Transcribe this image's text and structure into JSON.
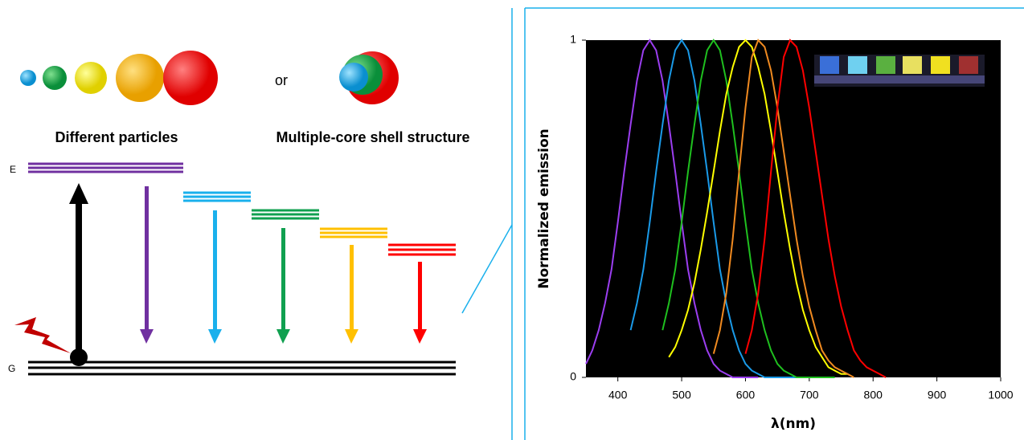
{
  "diagram": {
    "connector": "or",
    "labels": [
      "Different particles",
      "Multiple-core shell structure"
    ],
    "levels": {
      "excited": "E",
      "ground": "G"
    }
  },
  "chart_data": {
    "type": "line",
    "xlabel": "λ(nm)",
    "ylabel": "Normalized emission",
    "xlim": [
      350,
      1000
    ],
    "xticks": [
      400,
      500,
      600,
      700,
      800,
      900,
      1000
    ],
    "ylim": [
      0,
      1
    ],
    "yticks": [
      0,
      1
    ],
    "background": "#000000",
    "x": [
      350,
      360,
      370,
      380,
      390,
      400,
      410,
      420,
      430,
      440,
      450,
      460,
      470,
      480,
      490,
      500,
      510,
      520,
      530,
      540,
      550,
      560,
      570,
      580,
      590,
      600,
      610,
      620,
      630,
      640,
      650,
      660,
      670,
      680,
      690,
      700,
      710,
      720,
      730,
      740,
      750,
      760,
      770,
      780,
      790,
      800,
      810,
      820
    ],
    "series": [
      {
        "color": "#9b3ef0",
        "values": [
          0.04,
          0.08,
          0.14,
          0.22,
          0.32,
          0.46,
          0.61,
          0.75,
          0.88,
          0.97,
          1,
          0.97,
          0.88,
          0.75,
          0.61,
          0.46,
          0.32,
          0.22,
          0.14,
          0.08,
          0.04,
          0.02,
          0.01,
          0,
          0,
          0,
          0,
          0,
          null,
          null,
          null,
          null,
          null,
          null,
          null,
          null,
          null,
          null,
          null,
          null,
          null,
          null,
          null,
          null,
          null,
          null,
          null,
          null
        ]
      },
      {
        "color": "#1a9ae8",
        "values": [
          null,
          null,
          null,
          null,
          null,
          null,
          null,
          0.14,
          0.22,
          0.32,
          0.46,
          0.61,
          0.75,
          0.88,
          0.97,
          1,
          0.97,
          0.88,
          0.75,
          0.61,
          0.46,
          0.32,
          0.22,
          0.14,
          0.08,
          0.04,
          0.02,
          0.01,
          0,
          0,
          0,
          0,
          0,
          0,
          null,
          null,
          null,
          null,
          null,
          null,
          null,
          null,
          null,
          null,
          null,
          null,
          null,
          null
        ]
      },
      {
        "color": "#1fc01f",
        "values": [
          null,
          null,
          null,
          null,
          null,
          null,
          null,
          null,
          null,
          null,
          null,
          null,
          0.14,
          0.22,
          0.32,
          0.46,
          0.61,
          0.75,
          0.88,
          0.97,
          1,
          0.97,
          0.88,
          0.75,
          0.61,
          0.46,
          0.32,
          0.22,
          0.14,
          0.08,
          0.04,
          0.02,
          0.01,
          0,
          0,
          0,
          0,
          0,
          0,
          0,
          null,
          null,
          null,
          null,
          null,
          null,
          null,
          null
        ]
      },
      {
        "color": "#ffff00",
        "values": [
          null,
          null,
          null,
          null,
          null,
          null,
          null,
          null,
          null,
          null,
          null,
          null,
          null,
          0.06,
          0.09,
          0.14,
          0.2,
          0.28,
          0.38,
          0.49,
          0.61,
          0.73,
          0.84,
          0.92,
          0.98,
          1,
          0.98,
          0.92,
          0.84,
          0.73,
          0.61,
          0.49,
          0.38,
          0.28,
          0.2,
          0.14,
          0.09,
          0.06,
          0.03,
          0.02,
          0.01,
          0.01,
          null,
          null,
          null,
          null,
          null,
          null
        ]
      },
      {
        "color": "#f08a20",
        "values": [
          null,
          null,
          null,
          null,
          null,
          null,
          null,
          null,
          null,
          null,
          null,
          null,
          null,
          null,
          null,
          null,
          null,
          null,
          null,
          null,
          0.07,
          0.14,
          0.25,
          0.41,
          0.61,
          0.8,
          0.95,
          1,
          0.98,
          0.91,
          0.8,
          0.67,
          0.54,
          0.41,
          0.3,
          0.21,
          0.14,
          0.08,
          0.05,
          0.03,
          0.02,
          0.01,
          0,
          null,
          null,
          null,
          null,
          null
        ]
      },
      {
        "color": "#ff0000",
        "values": [
          null,
          null,
          null,
          null,
          null,
          null,
          null,
          null,
          null,
          null,
          null,
          null,
          null,
          null,
          null,
          null,
          null,
          null,
          null,
          null,
          null,
          null,
          null,
          null,
          null,
          0.07,
          0.14,
          0.25,
          0.41,
          0.61,
          0.8,
          0.95,
          1,
          0.98,
          0.91,
          0.8,
          0.67,
          0.54,
          0.41,
          0.3,
          0.21,
          0.14,
          0.08,
          0.05,
          0.03,
          0.02,
          0.01,
          0
        ]
      }
    ]
  }
}
